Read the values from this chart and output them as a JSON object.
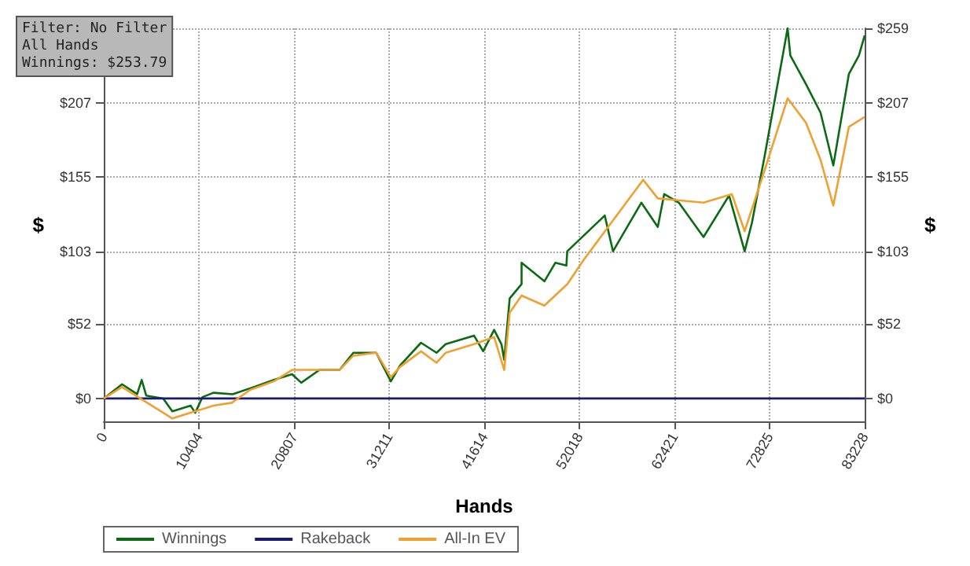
{
  "chart_data": {
    "type": "line",
    "xlabel": "Hands",
    "ylabel": "$",
    "y2label": "$",
    "annotations": [
      "Filter: No Filter\nAll Hands\nWinnings: $253.79"
    ],
    "xlim": [
      0,
      83228
    ],
    "xticks": [
      0,
      10404,
      20807,
      31211,
      41614,
      52018,
      62421,
      72825,
      83228
    ],
    "ylim": [
      -16,
      259
    ],
    "yticks": [
      {
        "value": 0,
        "label": "$0"
      },
      {
        "value": 52,
        "label": "$52"
      },
      {
        "value": 103,
        "label": "$103"
      },
      {
        "value": 155,
        "label": "$155"
      },
      {
        "value": 207,
        "label": "$207"
      },
      {
        "value": 259,
        "label": null
      }
    ],
    "y2lim": [
      -16,
      259
    ],
    "y2ticks": [
      {
        "value": 0,
        "label": "$0"
      },
      {
        "value": 52,
        "label": "$52"
      },
      {
        "value": 103,
        "label": "$103"
      },
      {
        "value": 155,
        "label": "$155"
      },
      {
        "value": 207,
        "label": "$207"
      },
      {
        "value": 259,
        "label": "$259"
      }
    ],
    "grid": true,
    "legend": "bottom left",
    "marker": "none",
    "line_style": "solid",
    "series": [
      {
        "name": "Winnings",
        "color": "#0a6b14",
        "x": [
          0,
          2000,
          3650,
          4150,
          4650,
          6500,
          7500,
          9500,
          10000,
          10800,
          12000,
          14100,
          16400,
          18600,
          20600,
          21600,
          23600,
          25800,
          27300,
          29800,
          31400,
          32400,
          34700,
          36400,
          37400,
          40500,
          41500,
          42700,
          43500,
          43800,
          44400,
          45700,
          45700,
          48200,
          49400,
          50600,
          50700,
          54800,
          55700,
          58800,
          60600,
          61300,
          62900,
          65600,
          68400,
          70100,
          70900,
          72300,
          74800,
          75100,
          76800,
          78400,
          79800,
          81500,
          82600,
          83228
        ],
        "values": [
          0,
          10,
          3,
          13,
          2,
          0,
          -9,
          -5,
          -10,
          1,
          4,
          3,
          8,
          13,
          17,
          11,
          20,
          20,
          32,
          32,
          12,
          23,
          39,
          32,
          38,
          44,
          33,
          48,
          38,
          27,
          70,
          80,
          95,
          82,
          95,
          93,
          103,
          128,
          103,
          137,
          120,
          143,
          137,
          113,
          142,
          103,
          123,
          170,
          259,
          240,
          220,
          200,
          163,
          227,
          240,
          254
        ]
      },
      {
        "name": "Rakeback",
        "color": "#1a1a6e",
        "x": [
          0,
          83228
        ],
        "values": [
          0,
          0
        ]
      },
      {
        "name": "All-In EV",
        "color": "#f0a030",
        "x": [
          0,
          2000,
          4000,
          6000,
          7500,
          9500,
          12000,
          14000,
          16000,
          18600,
          20600,
          23600,
          25800,
          27300,
          29800,
          31400,
          32400,
          34700,
          36400,
          37400,
          40500,
          42700,
          43800,
          44400,
          45700,
          48200,
          50700,
          52500,
          59000,
          60600,
          65600,
          68700,
          70100,
          72300,
          74800,
          76800,
          78400,
          79800,
          81500,
          83228
        ],
        "values": [
          0,
          8,
          0,
          -8,
          -14,
          -10,
          -5,
          -3,
          6,
          12,
          20,
          20,
          20,
          30,
          32,
          15,
          22,
          33,
          25,
          32,
          38,
          43,
          20,
          60,
          72,
          65,
          80,
          97,
          153,
          140,
          137,
          143,
          117,
          160,
          210,
          193,
          167,
          135,
          190,
          197
        ]
      }
    ]
  }
}
